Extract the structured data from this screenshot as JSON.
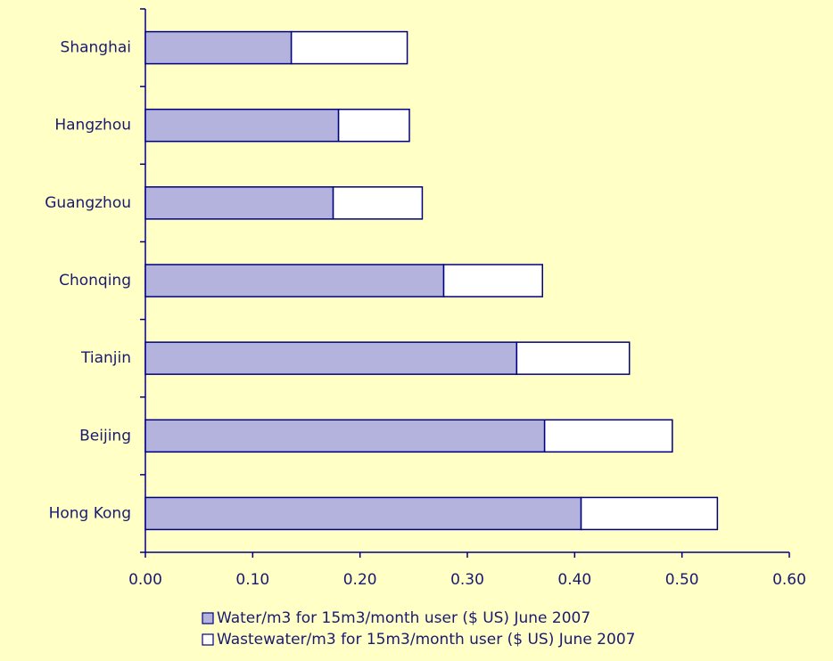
{
  "chart_data": {
    "type": "stacked_barh",
    "categories": [
      "Shanghai",
      "Hangzhou",
      "Guangzhou",
      "Chonqing",
      "Tianjin",
      "Beijing",
      "Hong Kong"
    ],
    "series": [
      {
        "name": "Water/m3 for 15m3/month user ($ US) June 2007",
        "color": "#b3b3dd",
        "values": [
          0.136,
          0.18,
          0.175,
          0.278,
          0.346,
          0.372,
          0.406
        ]
      },
      {
        "name": "Wastewater/m3 for 15m3/month user ($ US) June 2007",
        "color": "#ffffff",
        "values": [
          0.108,
          0.066,
          0.083,
          0.092,
          0.105,
          0.119,
          0.127
        ]
      }
    ],
    "xlim": [
      0,
      0.6
    ],
    "xticks": [
      {
        "value": 0,
        "label": "0.00"
      },
      {
        "value": 0.1,
        "label": "0.10"
      },
      {
        "value": 0.2,
        "label": "0.20"
      },
      {
        "value": 0.3,
        "label": "0.30"
      },
      {
        "value": 0.4,
        "label": "0.40"
      },
      {
        "value": 0.5,
        "label": "0.50"
      },
      {
        "value": 0.6,
        "label": "0.60"
      }
    ],
    "legend": "bottom"
  }
}
